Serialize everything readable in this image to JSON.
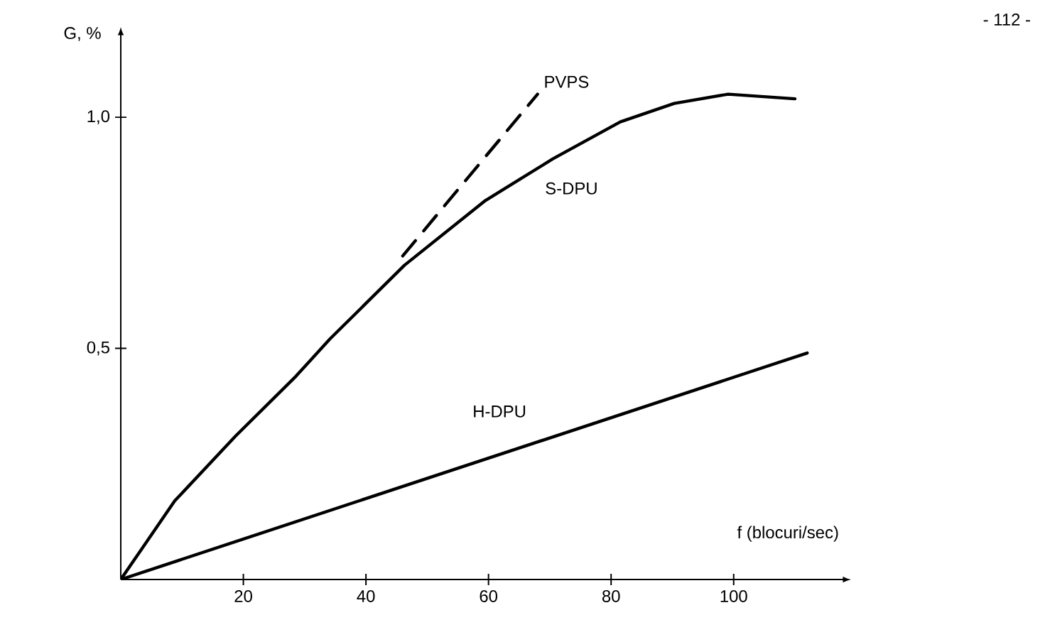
{
  "chart_data": {
    "type": "line",
    "xlabel": "f (blocuri/sec)",
    "ylabel": "G, %",
    "xlim": [
      0,
      118
    ],
    "ylim": [
      0,
      1.18
    ],
    "xticks": [
      20,
      40,
      60,
      80,
      100
    ],
    "yticks": [
      {
        "value": 0.5,
        "label": "0,5"
      },
      {
        "value": 1.0,
        "label": "1,0"
      }
    ],
    "grid": false,
    "legend": false,
    "marker": "none",
    "annotations": [
      "- 112 -"
    ],
    "series": [
      {
        "name": "PVPS",
        "color": "#000000",
        "line_style": "dashed",
        "x": [
          46,
          68
        ],
        "values": [
          0.7,
          1.05
        ]
      },
      {
        "name": "S-DPU",
        "color": "#000000",
        "line_style": "solid",
        "x": [
          0,
          8.8,
          18.7,
          28.6,
          34.1,
          46.3,
          59.5,
          70.5,
          81.5,
          90.3,
          99.1,
          110
        ],
        "values": [
          0,
          0.17,
          0.31,
          0.44,
          0.52,
          0.68,
          0.82,
          0.91,
          0.99,
          1.03,
          1.05,
          1.04
        ]
      },
      {
        "name": "H-DPU",
        "color": "#000000",
        "line_style": "solid",
        "x": [
          0,
          112
        ],
        "values": [
          0,
          0.49
        ]
      }
    ]
  }
}
